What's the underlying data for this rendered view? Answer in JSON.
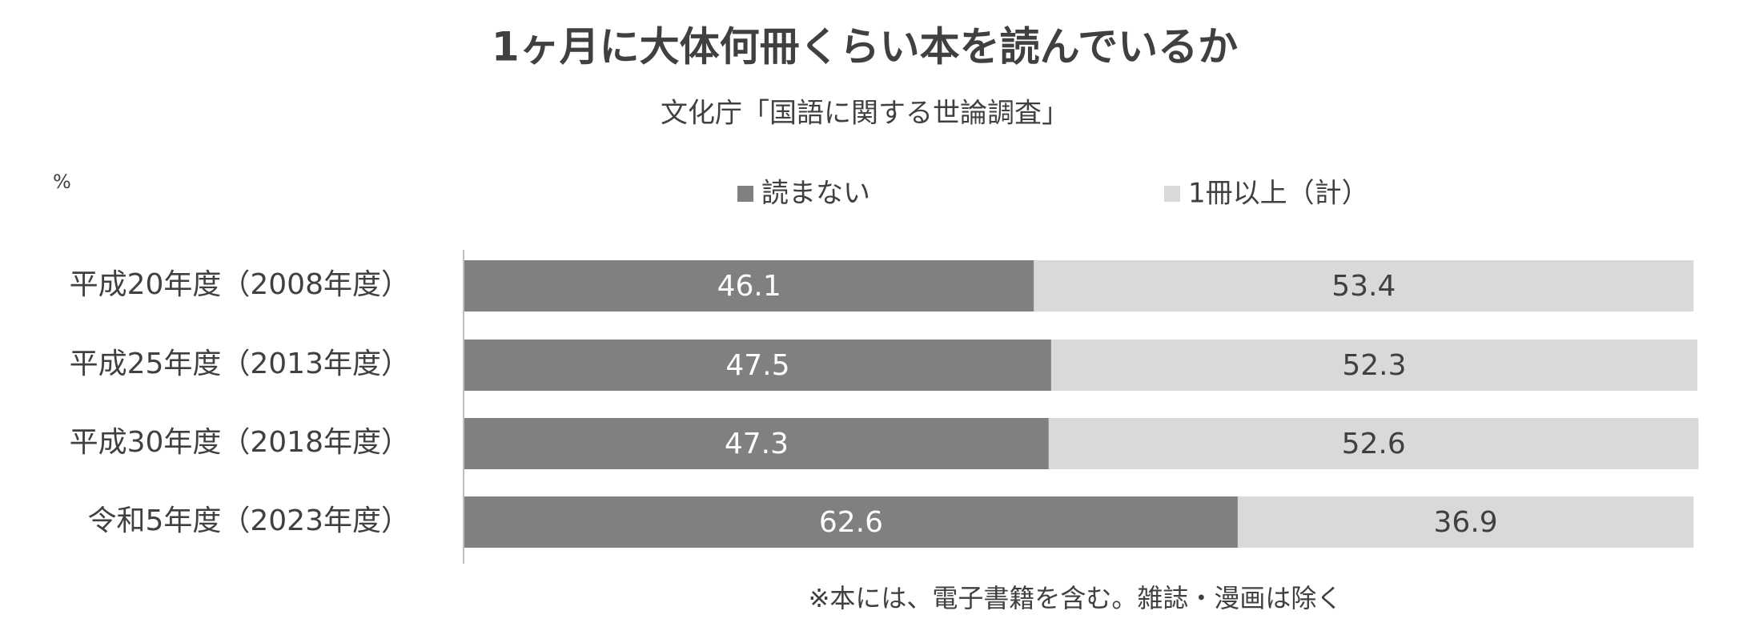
{
  "chart_data": {
    "type": "stacked-bar-horizontal",
    "title": "1ヶ月に大体何冊くらい本を読んでいるか",
    "subtitle": "文化庁「国語に関する世論調査」",
    "unit": "%",
    "note": "※本には、電子書籍を含む。雑誌・漫画は除く",
    "categories": [
      "平成20年度（2008年度）",
      "平成25年度（2013年度）",
      "平成30年度（2018年度）",
      "令和5年度（2023年度）"
    ],
    "series": [
      {
        "name": "読まない",
        "color": "#808080",
        "values": [
          46.1,
          47.5,
          47.3,
          62.6
        ]
      },
      {
        "name": "1冊以上（計）",
        "color": "#d9d9d9",
        "values": [
          53.4,
          52.3,
          52.6,
          36.9
        ]
      }
    ],
    "xlim": [
      0,
      100
    ]
  }
}
